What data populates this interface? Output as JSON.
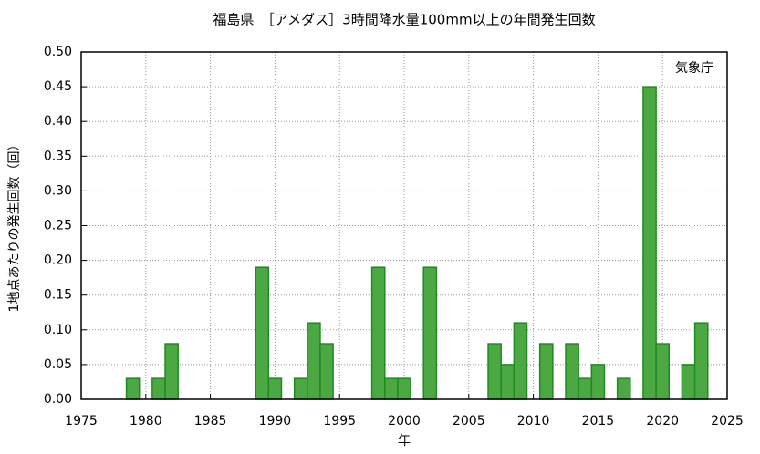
{
  "chart_data": {
    "type": "bar",
    "title": "福島県　［アメダス］3時間降水量100mm以上の年間発生回数",
    "x_label": "年",
    "y_label": "1地点あたりの発生回数（回）",
    "annotation": "気象庁",
    "x": [
      1979,
      1981,
      1982,
      1989,
      1990,
      1992,
      1993,
      1994,
      1998,
      1999,
      2000,
      2002,
      2007,
      2008,
      2009,
      2011,
      2013,
      2014,
      2015,
      2017,
      2019,
      2020,
      2022,
      2023
    ],
    "values": [
      0.03,
      0.03,
      0.08,
      0.19,
      0.03,
      0.03,
      0.11,
      0.08,
      0.19,
      0.03,
      0.03,
      0.19,
      0.08,
      0.05,
      0.11,
      0.08,
      0.08,
      0.03,
      0.05,
      0.03,
      0.45,
      0.08,
      0.05,
      0.11
    ],
    "color": "#4ca843",
    "xlim": [
      1975,
      2025
    ],
    "xticks": [
      1975,
      1980,
      1985,
      1990,
      1995,
      2000,
      2005,
      2010,
      2015,
      2020,
      2025
    ],
    "ylim": [
      0,
      0.5
    ],
    "yticks": [
      {
        "value": 0,
        "label": "0.00"
      },
      {
        "value": 0.05,
        "label": "0.05"
      },
      {
        "value": 0.1,
        "label": "0.10"
      },
      {
        "value": 0.15,
        "label": "0.15"
      },
      {
        "value": 0.2,
        "label": "0.20"
      },
      {
        "value": 0.25,
        "label": "0.25"
      },
      {
        "value": 0.3,
        "label": "0.30"
      },
      {
        "value": 0.35,
        "label": "0.35"
      },
      {
        "value": 0.4,
        "label": "0.40"
      },
      {
        "value": 0.45,
        "label": "0.45"
      },
      {
        "value": 0.5,
        "label": "0.50"
      }
    ],
    "grid": true
  }
}
